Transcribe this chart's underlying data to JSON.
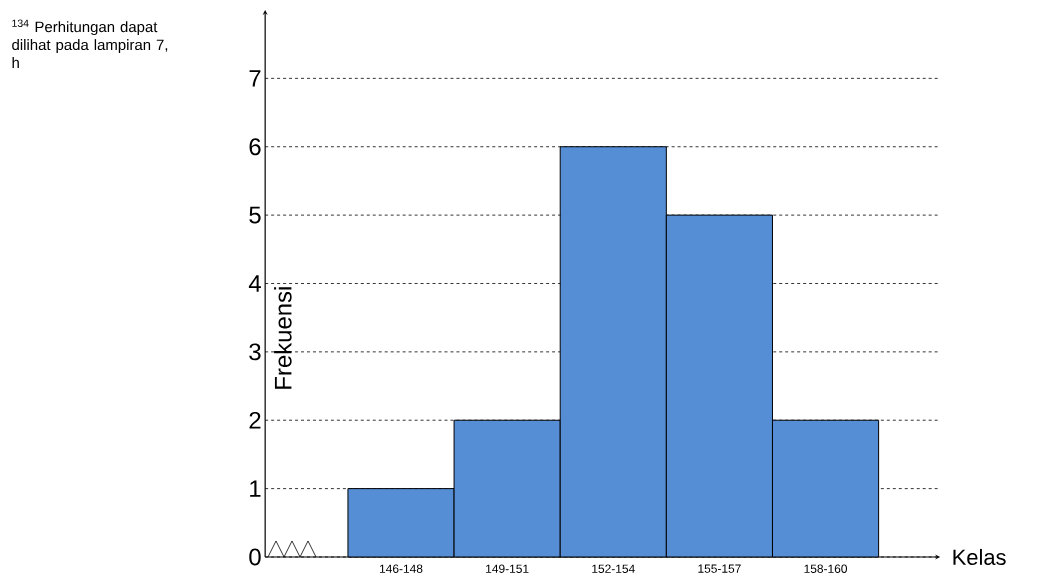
{
  "chart_data": {
    "type": "bar",
    "xlabel": "Kelas",
    "ylabel": "Frekuensi",
    "categories": [
      "146-148",
      "149-151",
      "152-154",
      "155-157",
      "158-160"
    ],
    "values": [
      1,
      2,
      6,
      5,
      2
    ],
    "color": "#558ed5",
    "ylim": [
      0,
      8
    ],
    "yticks": [
      0,
      1,
      2,
      3,
      4,
      5,
      6,
      7
    ],
    "grid": "y",
    "line_style": "dashed",
    "annotations": [
      "$^{134}$ Perhitungan dapat dilihat pada lampiran 7, h"
    ]
  }
}
